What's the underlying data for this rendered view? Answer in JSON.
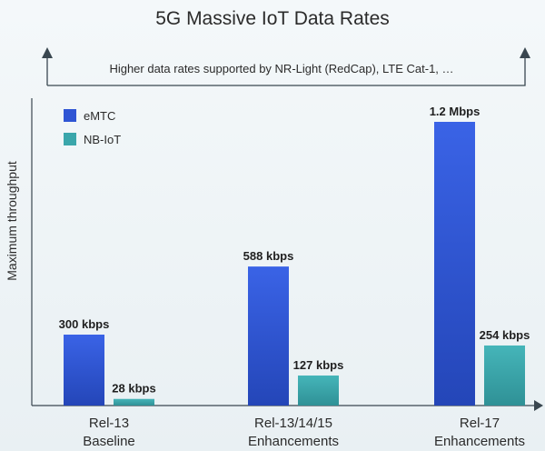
{
  "chart_data": {
    "type": "bar",
    "title": "5G Massive IoT Data Rates",
    "ylabel": "Maximum throughput",
    "xlabel": "",
    "annotation": "Higher data rates supported by NR-Light (RedCap), LTE Cat-1, …",
    "categories": [
      {
        "line1": "Rel-13",
        "line2": "Baseline"
      },
      {
        "line1": "Rel-13/14/15",
        "line2": "Enhancements"
      },
      {
        "line1": "Rel-17",
        "line2": "Enhancements"
      }
    ],
    "series": [
      {
        "name": "eMTC",
        "color": "#2f55d4",
        "values": [
          300,
          588,
          1200
        ],
        "labels": [
          "300 kbps",
          "588 kbps",
          "1.2 Mbps"
        ]
      },
      {
        "name": "NB-IoT",
        "color": "#3aa6ab",
        "values": [
          28,
          127,
          254
        ],
        "labels": [
          "28 kbps",
          "127 kbps",
          "254 kbps"
        ]
      }
    ],
    "unit": "kbps",
    "ylim": [
      0,
      1300
    ],
    "grid": false,
    "legend": "top-left"
  }
}
